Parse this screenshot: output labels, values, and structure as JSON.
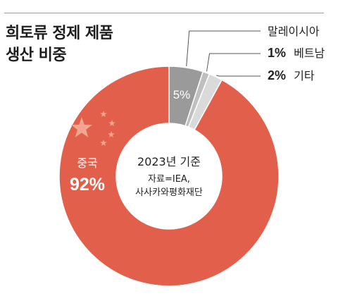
{
  "title": {
    "line1": "희토류 정제 제품",
    "line2": "생산 비중"
  },
  "chart_data": {
    "type": "pie",
    "title": "희토류 정제 제품 생산 비중",
    "center_label": {
      "year": "2023년 기준",
      "source_line1": "자료=IEA,",
      "source_line2": "사사카와평화재단"
    },
    "slices": [
      {
        "label": "말레이시아",
        "value": 5,
        "value_text": "5%",
        "color": "#9a9a9a"
      },
      {
        "label": "베트남",
        "value": 1,
        "value_text": "1%",
        "color": "#bfbfbf"
      },
      {
        "label": "기타",
        "value": 2,
        "value_text": "2%",
        "color": "#dadada"
      },
      {
        "label": "중국",
        "value": 92,
        "value_text": "92%",
        "color": "#e2604b"
      }
    ]
  },
  "colors": {
    "leader_line": "#555555",
    "star": "#f4a58f",
    "inner_text": "#222222",
    "slice_text": "#ffffff"
  }
}
